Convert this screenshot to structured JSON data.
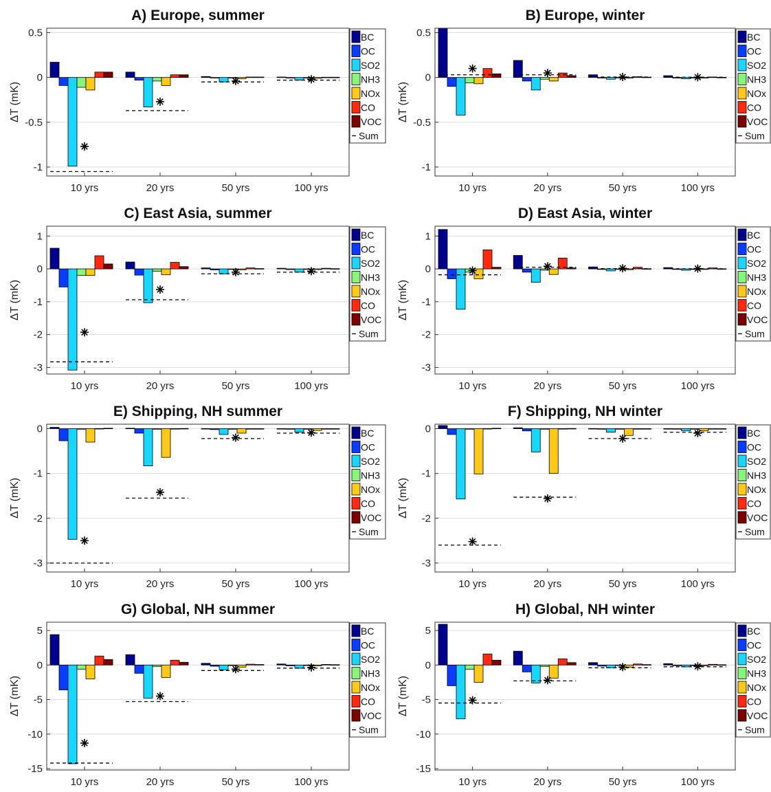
{
  "figure": {
    "colors": {
      "BC": "#00008f",
      "OC": "#0a3cff",
      "SO2": "#19d6ff",
      "NH3": "#86f579",
      "NOx": "#ffc91a",
      "CO": "#ff2a10",
      "VOC": "#7d0000"
    },
    "legend": [
      "BC",
      "OC",
      "SO2",
      "NH3",
      "NOx",
      "CO",
      "VOC",
      "Sum"
    ]
  },
  "chart_data": [
    {
      "type": "bar",
      "title": "A) Europe, summer",
      "ylabel": "ΔT (mK)",
      "ylim": [
        -1.1,
        0.55
      ],
      "yticks": [
        0.5,
        0,
        -0.5,
        -1
      ],
      "ytick_labels": [
        "0.5",
        "0",
        "-0.5",
        "-1"
      ],
      "categories": [
        "10 yrs",
        "20 yrs",
        "50 yrs",
        "100 yrs"
      ],
      "series": [
        {
          "name": "BC",
          "values": [
            0.17,
            0.06,
            0.01,
            0.005
          ]
        },
        {
          "name": "OC",
          "values": [
            -0.09,
            -0.03,
            -0.005,
            -0.003
          ]
        },
        {
          "name": "SO2",
          "values": [
            -0.99,
            -0.33,
            -0.05,
            -0.03
          ]
        },
        {
          "name": "NH3",
          "values": [
            -0.11,
            -0.04,
            -0.006,
            -0.004
          ]
        },
        {
          "name": "NOx",
          "values": [
            -0.14,
            -0.09,
            -0.015,
            -0.01
          ]
        },
        {
          "name": "CO",
          "values": [
            0.06,
            0.03,
            0.005,
            0.003
          ]
        },
        {
          "name": "VOC",
          "values": [
            0.06,
            0.03,
            0.005,
            0.003
          ]
        },
        {
          "name": "Sum",
          "values": [
            -1.05,
            -0.37,
            -0.05,
            -0.03
          ]
        }
      ],
      "stars": [
        -0.77,
        -0.27,
        -0.04,
        -0.02
      ]
    },
    {
      "type": "bar",
      "title": "B) Europe, winter",
      "ylabel": "ΔT (mK)",
      "ylim": [
        -1.1,
        0.55
      ],
      "yticks": [
        0.5,
        0,
        -0.5,
        -1
      ],
      "ytick_labels": [
        "0.5",
        "0",
        "-0.5",
        "-1"
      ],
      "categories": [
        "10 yrs",
        "20 yrs",
        "50 yrs",
        "100 yrs"
      ],
      "series": [
        {
          "name": "BC",
          "values": [
            0.55,
            0.19,
            0.03,
            0.02
          ]
        },
        {
          "name": "OC",
          "values": [
            -0.1,
            -0.04,
            -0.006,
            -0.004
          ]
        },
        {
          "name": "SO2",
          "values": [
            -0.42,
            -0.14,
            -0.02,
            -0.015
          ]
        },
        {
          "name": "NH3",
          "values": [
            -0.06,
            -0.02,
            -0.004,
            -0.002
          ]
        },
        {
          "name": "NOx",
          "values": [
            -0.07,
            -0.04,
            -0.006,
            -0.004
          ]
        },
        {
          "name": "CO",
          "values": [
            0.1,
            0.05,
            0.008,
            0.005
          ]
        },
        {
          "name": "VOC",
          "values": [
            0.04,
            0.02,
            0.004,
            0.002
          ]
        },
        {
          "name": "Sum",
          "values": [
            0.03,
            0.03,
            0.005,
            0.003
          ]
        }
      ],
      "stars": [
        0.1,
        0.05,
        0.005,
        0.003
      ]
    },
    {
      "type": "bar",
      "title": "C) East Asia, summer",
      "ylabel": "ΔT (mK)",
      "ylim": [
        -3.2,
        1.3
      ],
      "yticks": [
        1,
        0,
        -1,
        -2,
        -3
      ],
      "ytick_labels": [
        "1",
        "0",
        "-1",
        "-2",
        "-3"
      ],
      "categories": [
        "10 yrs",
        "20 yrs",
        "50 yrs",
        "100 yrs"
      ],
      "series": [
        {
          "name": "BC",
          "values": [
            0.63,
            0.21,
            0.03,
            0.02
          ]
        },
        {
          "name": "OC",
          "values": [
            -0.55,
            -0.19,
            -0.03,
            -0.02
          ]
        },
        {
          "name": "SO2",
          "values": [
            -3.08,
            -1.03,
            -0.15,
            -0.1
          ]
        },
        {
          "name": "NH3",
          "values": [
            -0.2,
            -0.07,
            -0.01,
            -0.007
          ]
        },
        {
          "name": "NOx",
          "values": [
            -0.2,
            -0.18,
            -0.03,
            -0.02
          ]
        },
        {
          "name": "CO",
          "values": [
            0.4,
            0.2,
            0.03,
            0.02
          ]
        },
        {
          "name": "VOC",
          "values": [
            0.15,
            0.07,
            0.01,
            0.007
          ]
        },
        {
          "name": "Sum",
          "values": [
            -2.83,
            -0.94,
            -0.15,
            -0.1
          ]
        }
      ],
      "stars": [
        -1.93,
        -0.63,
        -0.1,
        -0.07
      ]
    },
    {
      "type": "bar",
      "title": "D) East Asia, winter",
      "ylabel": "ΔT (mK)",
      "ylim": [
        -3.2,
        1.3
      ],
      "yticks": [
        1,
        0,
        -1,
        -2,
        -3
      ],
      "ytick_labels": [
        "1",
        "0",
        "-1",
        "-2",
        "-3"
      ],
      "categories": [
        "10 yrs",
        "20 yrs",
        "50 yrs",
        "100 yrs"
      ],
      "series": [
        {
          "name": "BC",
          "values": [
            1.2,
            0.41,
            0.06,
            0.04
          ]
        },
        {
          "name": "OC",
          "values": [
            -0.3,
            -0.1,
            -0.015,
            -0.01
          ]
        },
        {
          "name": "SO2",
          "values": [
            -1.23,
            -0.41,
            -0.06,
            -0.04
          ]
        },
        {
          "name": "NH3",
          "values": [
            -0.1,
            -0.04,
            -0.006,
            -0.004
          ]
        },
        {
          "name": "NOx",
          "values": [
            -0.3,
            -0.17,
            -0.025,
            -0.015
          ]
        },
        {
          "name": "CO",
          "values": [
            0.58,
            0.33,
            0.05,
            0.03
          ]
        },
        {
          "name": "VOC",
          "values": [
            0.05,
            0.03,
            0.005,
            0.003
          ]
        },
        {
          "name": "Sum",
          "values": [
            -0.18,
            0.05,
            0.007,
            0.005
          ]
        }
      ],
      "stars": [
        -0.05,
        0.08,
        0.02,
        0.01
      ]
    },
    {
      "type": "bar",
      "title": "E) Shipping, NH summer",
      "ylabel": "ΔT (mK)",
      "ylim": [
        -3.2,
        0.1
      ],
      "yticks": [
        0,
        -1,
        -2,
        -3
      ],
      "ytick_labels": [
        "0",
        "-1",
        "-2",
        "-3"
      ],
      "categories": [
        "10 yrs",
        "20 yrs",
        "50 yrs",
        "100 yrs"
      ],
      "series": [
        {
          "name": "BC",
          "values": [
            0.03,
            0.01,
            0.003,
            0.002
          ]
        },
        {
          "name": "OC",
          "values": [
            -0.27,
            -0.1,
            -0.02,
            -0.01
          ]
        },
        {
          "name": "SO2",
          "values": [
            -2.47,
            -0.83,
            -0.13,
            -0.08
          ]
        },
        {
          "name": "NH3",
          "values": [
            0,
            0,
            0,
            0
          ]
        },
        {
          "name": "NOx",
          "values": [
            -0.3,
            -0.64,
            -0.1,
            -0.04
          ]
        },
        {
          "name": "CO",
          "values": [
            0.004,
            0.002,
            0.001,
            0.001
          ]
        },
        {
          "name": "VOC",
          "values": [
            0.01,
            0.005,
            0.001,
            0.001
          ]
        },
        {
          "name": "Sum",
          "values": [
            -3.0,
            -1.55,
            -0.22,
            -0.1
          ]
        }
      ],
      "stars": [
        -2.5,
        -1.42,
        -0.2,
        -0.09
      ]
    },
    {
      "type": "bar",
      "title": "F) Shipping, NH winter",
      "ylabel": "ΔT (mK)",
      "ylim": [
        -3.2,
        0.1
      ],
      "yticks": [
        0,
        -1,
        -2,
        -3
      ],
      "ytick_labels": [
        "0",
        "-1",
        "-2",
        "-3"
      ],
      "categories": [
        "10 yrs",
        "20 yrs",
        "50 yrs",
        "100 yrs"
      ],
      "series": [
        {
          "name": "BC",
          "values": [
            0.07,
            0.02,
            0.004,
            0.002
          ]
        },
        {
          "name": "OC",
          "values": [
            -0.13,
            -0.05,
            -0.01,
            -0.005
          ]
        },
        {
          "name": "SO2",
          "values": [
            -1.57,
            -0.52,
            -0.08,
            -0.05
          ]
        },
        {
          "name": "NH3",
          "values": [
            0,
            0,
            0,
            0
          ]
        },
        {
          "name": "NOx",
          "values": [
            -1.01,
            -1.0,
            -0.15,
            -0.05
          ]
        },
        {
          "name": "CO",
          "values": [
            0.004,
            0.002,
            0.001,
            0.001
          ]
        },
        {
          "name": "VOC",
          "values": [
            0.01,
            0.005,
            0.001,
            0.001
          ]
        },
        {
          "name": "Sum",
          "values": [
            -2.6,
            -1.53,
            -0.22,
            -0.08
          ]
        }
      ],
      "stars": [
        -2.52,
        -1.56,
        -0.22,
        -0.1
      ]
    },
    {
      "type": "bar",
      "title": "G) Global, NH summer",
      "ylabel": "ΔT (mK)",
      "ylim": [
        -15.2,
        6.2
      ],
      "yticks": [
        5,
        0,
        -5,
        -10,
        -15
      ],
      "ytick_labels": [
        "5",
        "0",
        "-5",
        "-10",
        "-15"
      ],
      "categories": [
        "10 yrs",
        "20 yrs",
        "50 yrs",
        "100 yrs"
      ],
      "series": [
        {
          "name": "BC",
          "values": [
            4.4,
            1.5,
            0.25,
            0.15
          ]
        },
        {
          "name": "OC",
          "values": [
            -3.6,
            -1.2,
            -0.18,
            -0.12
          ]
        },
        {
          "name": "SO2",
          "values": [
            -14.3,
            -4.8,
            -0.7,
            -0.48
          ]
        },
        {
          "name": "NH3",
          "values": [
            -0.6,
            -0.2,
            -0.04,
            -0.02
          ]
        },
        {
          "name": "NOx",
          "values": [
            -2.0,
            -1.8,
            -0.3,
            -0.12
          ]
        },
        {
          "name": "CO",
          "values": [
            1.3,
            0.7,
            0.12,
            0.08
          ]
        },
        {
          "name": "VOC",
          "values": [
            0.8,
            0.4,
            0.07,
            0.05
          ]
        },
        {
          "name": "Sum",
          "values": [
            -14.2,
            -5.3,
            -0.8,
            -0.45
          ]
        }
      ],
      "stars": [
        -11.3,
        -4.5,
        -0.6,
        -0.35
      ]
    },
    {
      "type": "bar",
      "title": "H) Global, NH winter",
      "ylabel": "ΔT (mK)",
      "ylim": [
        -15.2,
        6.2
      ],
      "yticks": [
        5,
        0,
        -5,
        -10,
        -15
      ],
      "ytick_labels": [
        "5",
        "0",
        "-5",
        "-10",
        "-15"
      ],
      "categories": [
        "10 yrs",
        "20 yrs",
        "50 yrs",
        "100 yrs"
      ],
      "series": [
        {
          "name": "BC",
          "values": [
            5.9,
            2.0,
            0.35,
            0.2
          ]
        },
        {
          "name": "OC",
          "values": [
            -3.0,
            -1.0,
            -0.16,
            -0.1
          ]
        },
        {
          "name": "SO2",
          "values": [
            -7.8,
            -2.6,
            -0.4,
            -0.27
          ]
        },
        {
          "name": "NH3",
          "values": [
            -0.6,
            -0.2,
            -0.03,
            -0.02
          ]
        },
        {
          "name": "NOx",
          "values": [
            -2.5,
            -1.9,
            -0.3,
            -0.1
          ]
        },
        {
          "name": "CO",
          "values": [
            1.6,
            0.9,
            0.15,
            0.1
          ]
        },
        {
          "name": "VOC",
          "values": [
            0.7,
            0.35,
            0.06,
            0.04
          ]
        },
        {
          "name": "Sum",
          "values": [
            -5.5,
            -2.3,
            -0.4,
            -0.25
          ]
        }
      ],
      "stars": [
        -5.1,
        -2.2,
        -0.3,
        -0.2
      ]
    }
  ]
}
